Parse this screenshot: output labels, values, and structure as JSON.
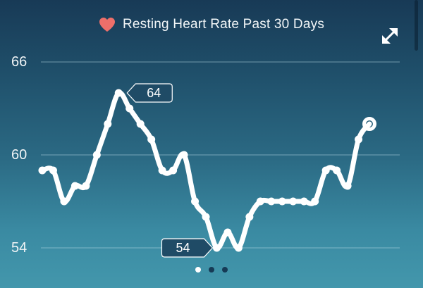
{
  "header": {
    "title": "Resting Heart Rate Past 30 Days",
    "heart_icon": "heart-icon",
    "expand_icon": "expand-arrows-icon",
    "heart_color": "#ee6f6a"
  },
  "axis": {
    "y_ticks": [
      "66",
      "60",
      "54"
    ]
  },
  "callouts": {
    "max_label": "64",
    "min_label": "54"
  },
  "pagination": {
    "pages": 3,
    "active_index": 0
  },
  "colors": {
    "background_top": "#183a56",
    "background_bottom": "#4397ac",
    "line": "#ffffff",
    "callout_fill": "#1f4b66",
    "dot_inactive": "#163a55"
  },
  "chart_data": {
    "type": "line",
    "title": "Resting Heart Rate Past 30 Days",
    "xlabel": "",
    "ylabel": "",
    "ylim": [
      53,
      67
    ],
    "y_ticks": [
      54,
      60,
      66
    ],
    "grid": true,
    "legend": null,
    "x": [
      1,
      2,
      3,
      4,
      5,
      6,
      7,
      8,
      9,
      10,
      11,
      12,
      13,
      14,
      15,
      16,
      17,
      18,
      19,
      20,
      21,
      22,
      23,
      24,
      25,
      26,
      27,
      28,
      29,
      30,
      31
    ],
    "series": [
      {
        "name": "Resting Heart Rate",
        "values": [
          59,
          59,
          57,
          58,
          58,
          60,
          62,
          64,
          63,
          62,
          61,
          59,
          59,
          60,
          57,
          56,
          54,
          55,
          54,
          56,
          57,
          57,
          57,
          57,
          57,
          57,
          59,
          59,
          58,
          61,
          62
        ]
      }
    ],
    "annotations": [
      {
        "label": "64",
        "type": "max",
        "x": 8
      },
      {
        "label": "54",
        "type": "min",
        "x": 17
      }
    ]
  }
}
